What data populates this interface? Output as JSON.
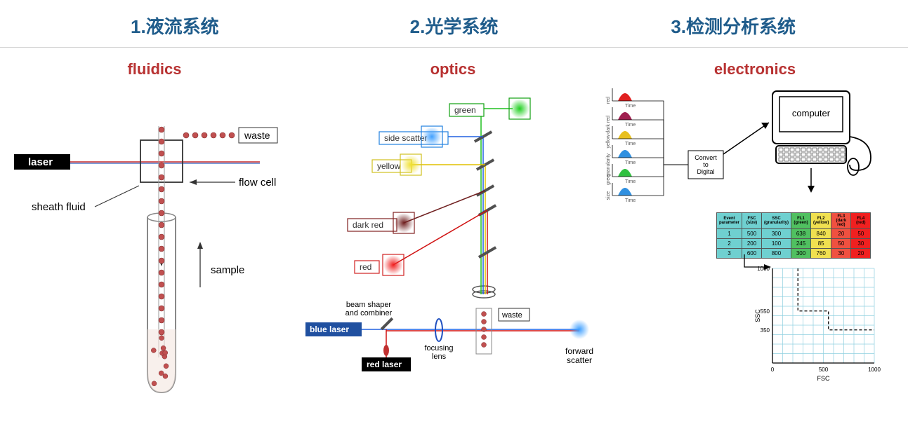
{
  "headers": {
    "h1": "1.液流系统",
    "h2": "2.光学系统",
    "h3": "3.检测分析系统"
  },
  "fluidics": {
    "title": "fluidics",
    "title_color": "#b83232",
    "laser_label": "laser",
    "laser_box": {
      "fill": "#000000",
      "text_color": "#ffffff"
    },
    "waste_label": "waste",
    "flow_cell_label": "flow cell",
    "sheath_fluid_label": "sheath fluid",
    "sample_label": "sample",
    "cell_color": "#c05050",
    "tube_stroke": "#888888",
    "laser_beam_color": "#c00000",
    "sheath_beam_color": "#3060c0",
    "arrow_color": "#333333"
  },
  "optics": {
    "title": "optics",
    "title_color": "#b83232",
    "blue_laser_label": "blue laser",
    "blue_laser_fill": "#2050a0",
    "red_laser_label": "red laser",
    "red_laser_fill": "#000000",
    "beam_shaper_label1": "beam shaper",
    "beam_shaper_label2": "and combiner",
    "focusing_lens_label1": "focusing",
    "focusing_lens_label2": "lens",
    "waste_label": "waste",
    "forward_scatter_label1": "forward",
    "forward_scatter_label2": "scatter",
    "detectors": {
      "green": {
        "label": "green",
        "box_stroke": "#10a010",
        "glow": "#20d020"
      },
      "side_scatter": {
        "label": "side scatter",
        "box_stroke": "#2080e0",
        "glow": "#40a0ff"
      },
      "yellow": {
        "label": "yellow",
        "box_stroke": "#d0c020",
        "glow": "#f0e030"
      },
      "dark_red": {
        "label": "dark red",
        "box_stroke": "#802020",
        "glow": "#702020"
      },
      "red": {
        "label": "red",
        "box_stroke": "#d02020",
        "glow": "#f02020"
      },
      "forward": {
        "glow": "#40a0ff"
      }
    },
    "beam_blue": "#2060e0",
    "beam_red": "#d01010",
    "beam_green": "#20c020",
    "beam_yellow": "#e0c000",
    "mirror_fill": "#505050",
    "lens_stroke": "#2050c0",
    "cell_color": "#c05050"
  },
  "electronics": {
    "title": "electronics",
    "title_color": "#b83232",
    "computer_label": "computer",
    "convert_label1": "Convert",
    "convert_label2": "to",
    "convert_label3": "Digital",
    "time_label": "Time",
    "signals": [
      {
        "name": "red",
        "color": "#e02020"
      },
      {
        "name": "dark red",
        "color": "#a02050"
      },
      {
        "name": "yellow",
        "color": "#e8c020"
      },
      {
        "name": "granularity",
        "color": "#3090e0"
      },
      {
        "name": "green",
        "color": "#30c040"
      },
      {
        "name": "size",
        "color": "#3090e0"
      }
    ],
    "table": {
      "header_labels": [
        "Event parameter",
        "FSC (size)",
        "SSC (granularity)",
        "FL1 (green)",
        "FL2 (yellow)",
        "FL3 (dark red)",
        "FL4 (red)"
      ],
      "header_colors": [
        "#6fd0d0",
        "#6fd0d0",
        "#6fd0d0",
        "#50c060",
        "#f0e050",
        "#f05040",
        "#f02020"
      ],
      "row_label_color": "#6fd0d0",
      "rows": [
        {
          "id": "1",
          "cells": [
            "500",
            "300",
            "638",
            "840",
            "20",
            "50"
          ]
        },
        {
          "id": "2",
          "cells": [
            "200",
            "100",
            "245",
            "85",
            "50",
            "30"
          ]
        },
        {
          "id": "3",
          "cells": [
            "600",
            "800",
            "300",
            "760",
            "30",
            "20"
          ]
        }
      ],
      "cell_colors": [
        "#6fd0d0",
        "#6fd0d0",
        "#50c060",
        "#f0e050",
        "#f05040",
        "#f02020"
      ]
    },
    "plot": {
      "grid_color": "#90d0e0",
      "axis_color": "#000000",
      "x_label": "FSC",
      "y_label": "SSC",
      "ticks": [
        "0",
        "500",
        "1000"
      ],
      "ytick1": "350",
      "ytick2": "550",
      "ytick3": "1000",
      "gate_stroke": "#000000"
    }
  }
}
